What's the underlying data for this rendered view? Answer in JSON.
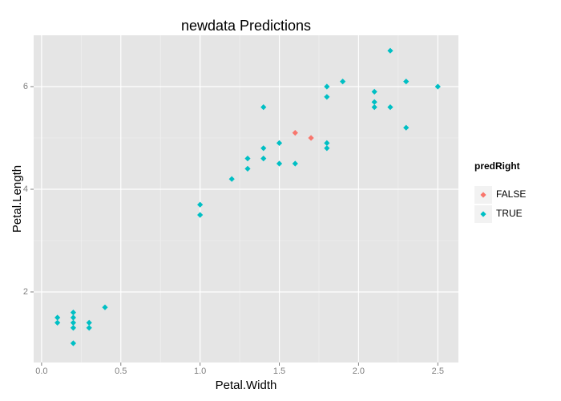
{
  "chart_data": {
    "type": "scatter",
    "title": "newdata Predictions",
    "x_label": "Petal.Width",
    "y_label": "Petal.Length",
    "legend_title": "predRight",
    "legend_position": "right",
    "xlim": [
      -0.05,
      2.63
    ],
    "ylim": [
      0.625,
      7.0
    ],
    "xticks": [
      {
        "value": 0,
        "label": "0.0"
      },
      0.5,
      {
        "value": 1,
        "label": "1.0"
      },
      1.5,
      {
        "value": 2,
        "label": "2.0"
      },
      2.5
    ],
    "yticks": [
      2,
      4,
      6
    ],
    "grid": true,
    "series": [
      {
        "name": "FALSE",
        "color": "#F8766D",
        "x": [
          1.6,
          1.7
        ],
        "values": [
          5.1,
          5.0
        ]
      },
      {
        "name": "TRUE",
        "color": "#00BFC4",
        "x": [
          0.1,
          0.1,
          0.2,
          0.2,
          0.2,
          0.2,
          0.2,
          0.3,
          0.3,
          0.4,
          1.0,
          1.0,
          1.2,
          1.3,
          1.3,
          1.4,
          1.4,
          1.4,
          1.5,
          1.5,
          1.6,
          1.8,
          1.8,
          1.8,
          1.8,
          1.9,
          2.1,
          2.1,
          2.1,
          2.2,
          2.2,
          2.3,
          2.3,
          2.5
        ],
        "values": [
          1.5,
          1.4,
          1.6,
          1.5,
          1.4,
          1.3,
          1.0,
          1.4,
          1.3,
          1.7,
          3.7,
          3.5,
          4.2,
          4.6,
          4.4,
          5.6,
          4.8,
          4.6,
          4.9,
          4.5,
          4.5,
          6.0,
          5.8,
          4.9,
          4.8,
          6.1,
          5.9,
          5.7,
          5.6,
          6.7,
          5.6,
          6.1,
          5.2,
          6.0
        ]
      }
    ]
  }
}
